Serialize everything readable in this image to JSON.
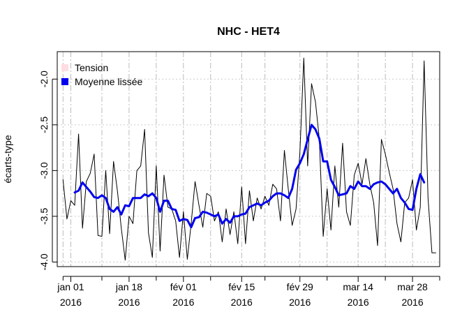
{
  "chart_data": {
    "type": "line",
    "title": "NHC - HET4",
    "ylabel": "écarts-type",
    "xlabel": "",
    "ylim": [
      -4.05,
      -1.7
    ],
    "x_start_date": "2015-12-30",
    "x_range_days": [
      -1.5,
      97
    ],
    "y_ticks": [
      {
        "value": -4.0,
        "label": "-4.0"
      },
      {
        "value": -3.5,
        "label": "-3.5"
      },
      {
        "value": -3.0,
        "label": "-3.0"
      },
      {
        "value": -2.5,
        "label": "-2.5"
      },
      {
        "value": -2.0,
        "label": "-2.0"
      }
    ],
    "x_ticks_major": [
      {
        "day": 2,
        "label1": "jan 01",
        "label2": "2016"
      },
      {
        "day": 17,
        "label1": "jan 18",
        "label2": "2016"
      },
      {
        "day": 31,
        "label1": "fév 01",
        "label2": "2016"
      },
      {
        "day": 46,
        "label1": "fév 15",
        "label2": "2016"
      },
      {
        "day": 61,
        "label1": "fév 29",
        "label2": "2016"
      },
      {
        "day": 76,
        "label1": "mar 14",
        "label2": "2016"
      },
      {
        "day": 90,
        "label1": "mar 28",
        "label2": "2016"
      }
    ],
    "x_ticks_minor_days": [
      0,
      10,
      24,
      38,
      52,
      68,
      83,
      97
    ],
    "grid": true,
    "legend": {
      "position": "top-left",
      "entries": [
        {
          "label": "Tension",
          "color": "#ffdde0"
        },
        {
          "label": "Moyenne lissée",
          "color": "#0000ee"
        }
      ]
    },
    "series": [
      {
        "name": "Tension",
        "color": "#000000",
        "x_days": [
          0,
          1,
          2,
          3,
          4,
          5,
          6,
          7,
          8,
          9,
          10,
          11,
          12,
          13,
          14,
          15,
          16,
          17,
          18,
          19,
          20,
          21,
          22,
          23,
          24,
          25,
          26,
          27,
          28,
          29,
          30,
          31,
          32,
          33,
          34,
          35,
          36,
          37,
          38,
          39,
          40,
          41,
          42,
          43,
          44,
          45,
          46,
          47,
          48,
          49,
          50,
          51,
          52,
          53,
          54,
          55,
          56,
          57,
          58,
          59,
          60,
          61,
          62,
          63,
          64,
          65,
          66,
          67,
          68,
          69,
          70,
          71,
          72,
          73,
          74,
          75,
          76,
          77,
          78,
          79,
          80,
          81,
          82,
          83,
          84,
          85,
          86,
          87,
          88,
          89,
          90,
          91,
          92,
          93,
          94,
          95,
          96
        ],
        "values": [
          -3.1,
          -3.53,
          -3.33,
          -3.38,
          -2.6,
          -3.63,
          -3.12,
          -3.03,
          -2.82,
          -3.71,
          -3.72,
          -3.0,
          -3.69,
          -2.9,
          -3.22,
          -3.63,
          -3.98,
          -3.5,
          -3.58,
          -3.0,
          -2.95,
          -2.55,
          -3.68,
          -3.95,
          -2.95,
          -3.88,
          -3.05,
          -3.4,
          -3.42,
          -3.55,
          -3.95,
          -3.45,
          -3.97,
          -3.58,
          -3.12,
          -3.38,
          -3.62,
          -3.25,
          -3.28,
          -3.55,
          -3.45,
          -3.78,
          -3.42,
          -3.7,
          -3.45,
          -3.8,
          -3.18,
          -3.8,
          -3.22,
          -3.55,
          -3.3,
          -3.42,
          -3.28,
          -3.38,
          -3.15,
          -3.2,
          -3.55,
          -2.78,
          -3.2,
          -3.6,
          -3.42,
          -2.8,
          -1.77,
          -2.95,
          -2.05,
          -2.25,
          -2.65,
          -3.72,
          -3.2,
          -3.65,
          -2.95,
          -3.4,
          -2.7,
          -3.45,
          -3.6,
          -3.05,
          -2.92,
          -3.15,
          -2.87,
          -3.15,
          -3.35,
          -3.82,
          -2.66,
          -2.82,
          -3.02,
          -3.2,
          -3.58,
          -3.78,
          -3.35,
          -3.3,
          -3.1,
          -3.65,
          -3.4,
          -1.8,
          -3.3,
          -3.9,
          -3.9
        ]
      },
      {
        "name": "Moyenne lissée",
        "color": "#0000ee",
        "x_days": [
          3,
          4,
          5,
          6,
          7,
          8,
          9,
          10,
          11,
          12,
          13,
          14,
          15,
          16,
          17,
          18,
          19,
          20,
          21,
          22,
          23,
          24,
          25,
          26,
          27,
          28,
          29,
          30,
          31,
          32,
          33,
          34,
          35,
          36,
          37,
          38,
          39,
          40,
          41,
          42,
          43,
          44,
          45,
          46,
          47,
          48,
          49,
          50,
          51,
          52,
          53,
          54,
          55,
          56,
          57,
          58,
          59,
          60,
          61,
          62,
          63,
          64,
          65,
          66,
          67,
          68,
          69,
          70,
          71,
          72,
          73,
          74,
          75,
          76,
          77,
          78,
          79,
          80,
          81,
          82,
          83,
          84,
          85,
          86,
          87,
          88,
          89,
          90,
          91,
          92,
          93
        ],
        "values": [
          -3.24,
          -3.22,
          -3.13,
          -3.18,
          -3.23,
          -3.29,
          -3.3,
          -3.27,
          -3.3,
          -3.42,
          -3.45,
          -3.4,
          -3.48,
          -3.38,
          -3.39,
          -3.3,
          -3.3,
          -3.3,
          -3.26,
          -3.28,
          -3.25,
          -3.3,
          -3.45,
          -3.33,
          -3.33,
          -3.42,
          -3.43,
          -3.55,
          -3.53,
          -3.54,
          -3.62,
          -3.52,
          -3.51,
          -3.45,
          -3.46,
          -3.48,
          -3.5,
          -3.48,
          -3.58,
          -3.53,
          -3.57,
          -3.5,
          -3.5,
          -3.48,
          -3.47,
          -3.4,
          -3.38,
          -3.36,
          -3.38,
          -3.35,
          -3.33,
          -3.28,
          -3.25,
          -3.25,
          -3.27,
          -3.3,
          -3.2,
          -2.99,
          -2.92,
          -2.82,
          -2.66,
          -2.5,
          -2.55,
          -2.65,
          -2.9,
          -2.9,
          -3.1,
          -3.18,
          -3.27,
          -3.26,
          -3.25,
          -3.17,
          -3.2,
          -3.12,
          -3.17,
          -3.17,
          -3.2,
          -3.15,
          -3.13,
          -3.12,
          -3.15,
          -3.2,
          -3.25,
          -3.2,
          -3.3,
          -3.35,
          -3.42,
          -3.43,
          -3.2,
          -3.04,
          -3.13
        ]
      }
    ]
  }
}
